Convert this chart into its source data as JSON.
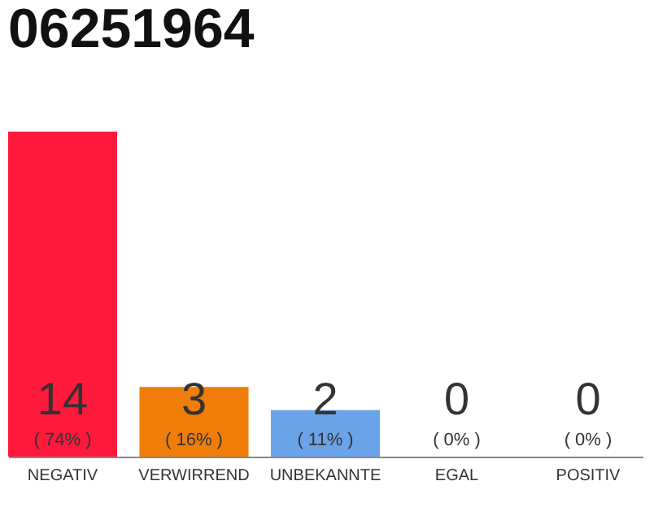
{
  "chart_data": {
    "type": "bar",
    "title": "06251964",
    "categories": [
      "NEGATIV",
      "VERWIRREND",
      "UNBEKANNTE",
      "EGAL",
      "POSITIV"
    ],
    "values": [
      14,
      3,
      2,
      0,
      0
    ],
    "colors": [
      "#ff1a3c",
      "#f07d0a",
      "#6aa3e8",
      "#6aa3e8",
      "#6aa3e8"
    ],
    "ylim": [
      0,
      14
    ],
    "tick_labels": "x",
    "data_labels": true,
    "annotations": [
      {
        "text": "( 74% )",
        "x": "NEGATIV",
        "y": 0
      },
      {
        "text": "( 16% )",
        "x": "VERWIRREND",
        "y": 0
      },
      {
        "text": "( 11% )",
        "x": "UNBEKANNTE",
        "y": 0
      },
      {
        "text": "( 0% )",
        "x": "EGAL",
        "y": 0
      },
      {
        "text": "( 0% )",
        "x": "POSITIV",
        "y": 0
      }
    ]
  }
}
